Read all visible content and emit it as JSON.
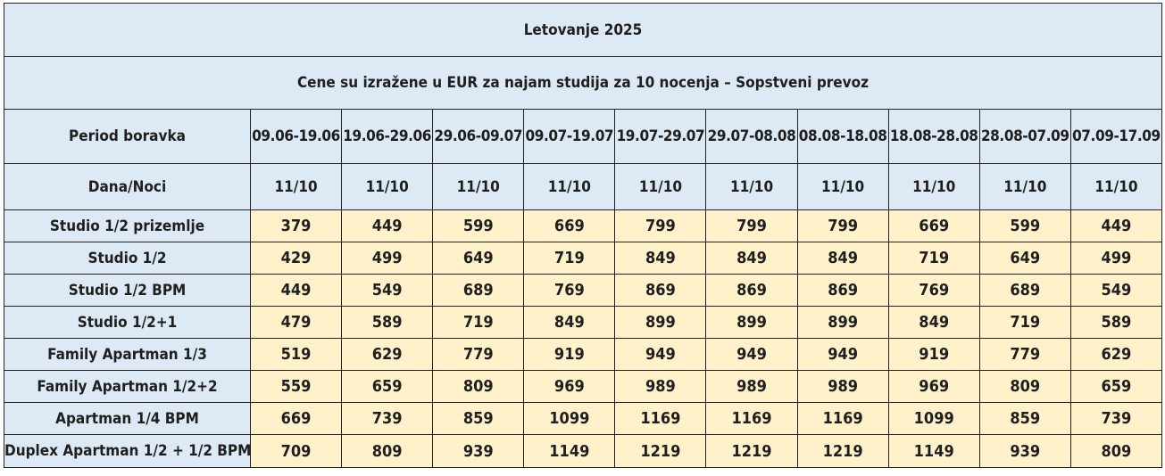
{
  "table": {
    "title": "Letovanje 2025",
    "subtitle": "Cene su izražene u EUR za najam studija za 10 nocenja – Sopstveni prevoz",
    "period_label": "Period boravka",
    "nights_label": "Dana/Noci",
    "periods": [
      "09.06-19.06",
      "19.06-29.06",
      "29.06-09.07",
      "09.07-19.07",
      "19.07-29.07",
      "29.07-08.08",
      "08.08-18.08",
      "18.08-28.08",
      "28.08-07.09",
      "07.09-17.09"
    ],
    "nights": [
      "11/10",
      "11/10",
      "11/10",
      "11/10",
      "11/10",
      "11/10",
      "11/10",
      "11/10",
      "11/10",
      "11/10"
    ],
    "rows": [
      {
        "name": "Studio 1/2 prizemlje",
        "prices": [
          379,
          449,
          599,
          669,
          799,
          799,
          799,
          669,
          599,
          449
        ]
      },
      {
        "name": "Studio 1/2",
        "prices": [
          429,
          499,
          649,
          719,
          849,
          849,
          849,
          719,
          649,
          499
        ]
      },
      {
        "name": "Studio 1/2 BPM",
        "prices": [
          449,
          549,
          689,
          769,
          869,
          869,
          869,
          769,
          689,
          549
        ]
      },
      {
        "name": "Studio 1/2+1",
        "prices": [
          479,
          589,
          719,
          849,
          899,
          899,
          899,
          849,
          719,
          589
        ]
      },
      {
        "name": "Family Apartman 1/3",
        "prices": [
          519,
          629,
          779,
          919,
          949,
          949,
          949,
          919,
          779,
          629
        ]
      },
      {
        "name": "Family Apartman 1/2+2",
        "prices": [
          559,
          659,
          809,
          969,
          989,
          989,
          989,
          969,
          809,
          659
        ]
      },
      {
        "name": "Apartman 1/4 BPM",
        "prices": [
          669,
          739,
          859,
          1099,
          1169,
          1169,
          1169,
          1099,
          859,
          739
        ]
      },
      {
        "name": "Duplex Apartman 1/2 + 1/2 BPM",
        "prices": [
          709,
          809,
          939,
          1149,
          1219,
          1219,
          1219,
          1149,
          939,
          809
        ]
      }
    ]
  }
}
